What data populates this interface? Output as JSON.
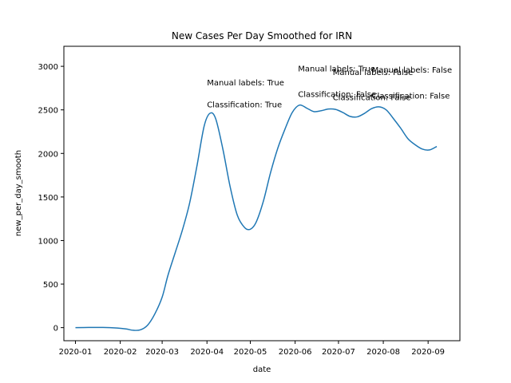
{
  "chart_data": {
    "type": "line",
    "title": "New Cases Per Day Smoothed for IRN",
    "xlabel": "date",
    "ylabel": "new_per_day_smooth",
    "x_ticks": [
      "2020-01",
      "2020-02",
      "2020-03",
      "2020-04",
      "2020-05",
      "2020-06",
      "2020-07",
      "2020-08",
      "2020-09"
    ],
    "y_ticks": [
      0,
      500,
      1000,
      1500,
      2000,
      2500,
      3000
    ],
    "xlim": [
      "2019-12-24",
      "2020-09-23"
    ],
    "ylim": [
      -150,
      3230
    ],
    "grid": false,
    "legend": "none",
    "series": [
      {
        "color": "#1f77b4",
        "points": [
          {
            "x": "2020-01-01",
            "y": 0
          },
          {
            "x": "2020-01-10",
            "y": 2
          },
          {
            "x": "2020-01-20",
            "y": 2
          },
          {
            "x": "2020-01-30",
            "y": -5
          },
          {
            "x": "2020-02-05",
            "y": -15
          },
          {
            "x": "2020-02-10",
            "y": -30
          },
          {
            "x": "2020-02-15",
            "y": -25
          },
          {
            "x": "2020-02-20",
            "y": 30
          },
          {
            "x": "2020-02-25",
            "y": 160
          },
          {
            "x": "2020-03-01",
            "y": 350
          },
          {
            "x": "2020-03-05",
            "y": 600
          },
          {
            "x": "2020-03-10",
            "y": 860
          },
          {
            "x": "2020-03-15",
            "y": 1120
          },
          {
            "x": "2020-03-20",
            "y": 1430
          },
          {
            "x": "2020-03-25",
            "y": 1850
          },
          {
            "x": "2020-03-30",
            "y": 2310
          },
          {
            "x": "2020-04-03",
            "y": 2460
          },
          {
            "x": "2020-04-07",
            "y": 2400
          },
          {
            "x": "2020-04-12",
            "y": 2050
          },
          {
            "x": "2020-04-17",
            "y": 1620
          },
          {
            "x": "2020-04-22",
            "y": 1290
          },
          {
            "x": "2020-04-27",
            "y": 1150
          },
          {
            "x": "2020-05-01",
            "y": 1130
          },
          {
            "x": "2020-05-05",
            "y": 1210
          },
          {
            "x": "2020-05-10",
            "y": 1450
          },
          {
            "x": "2020-05-15",
            "y": 1780
          },
          {
            "x": "2020-05-20",
            "y": 2060
          },
          {
            "x": "2020-05-25",
            "y": 2280
          },
          {
            "x": "2020-05-30",
            "y": 2470
          },
          {
            "x": "2020-06-04",
            "y": 2555
          },
          {
            "x": "2020-06-09",
            "y": 2520
          },
          {
            "x": "2020-06-14",
            "y": 2480
          },
          {
            "x": "2020-06-19",
            "y": 2490
          },
          {
            "x": "2020-06-24",
            "y": 2510
          },
          {
            "x": "2020-06-29",
            "y": 2505
          },
          {
            "x": "2020-07-04",
            "y": 2470
          },
          {
            "x": "2020-07-09",
            "y": 2425
          },
          {
            "x": "2020-07-14",
            "y": 2420
          },
          {
            "x": "2020-07-19",
            "y": 2460
          },
          {
            "x": "2020-07-24",
            "y": 2515
          },
          {
            "x": "2020-07-29",
            "y": 2535
          },
          {
            "x": "2020-08-03",
            "y": 2500
          },
          {
            "x": "2020-08-08",
            "y": 2400
          },
          {
            "x": "2020-08-13",
            "y": 2290
          },
          {
            "x": "2020-08-18",
            "y": 2170
          },
          {
            "x": "2020-08-23",
            "y": 2100
          },
          {
            "x": "2020-08-28",
            "y": 2050
          },
          {
            "x": "2020-09-02",
            "y": 2040
          },
          {
            "x": "2020-09-07",
            "y": 2080
          }
        ]
      }
    ],
    "annotations": [
      {
        "text": "Manual labels: True",
        "x": "2020-04-01",
        "y": 2780
      },
      {
        "text": "Classification: True",
        "x": "2020-04-01",
        "y": 2530
      },
      {
        "text": "Manual labels: True",
        "x": "2020-06-03",
        "y": 2940
      },
      {
        "text": "Classification: False",
        "x": "2020-06-03",
        "y": 2650
      },
      {
        "text": "Manual labels: False",
        "x": "2020-06-27",
        "y": 2900
      },
      {
        "text": "Classification: False",
        "x": "2020-06-27",
        "y": 2610
      },
      {
        "text": "Manual labels: False",
        "x": "2020-07-24",
        "y": 2930
      },
      {
        "text": "Classification: False",
        "x": "2020-07-24",
        "y": 2630
      }
    ]
  }
}
